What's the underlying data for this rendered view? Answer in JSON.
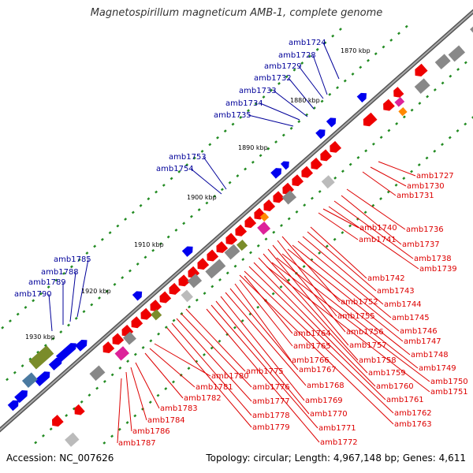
{
  "title": "Magnetospirillum magneticum AMB-1, complete genome",
  "accession": "Accession: NC_007626",
  "topology": "Topology: circular; Length: 4,967,148 bp; Genes: 4,611",
  "colors": {
    "backbone": "#888888",
    "forward_gene": "#0000ee",
    "reverse_gene": "#ee0000",
    "forward_label": "#000099",
    "reverse_label": "#dd0000",
    "cog_dot": "#228b22"
  },
  "scale_ticks": [
    "1870 kbp",
    "1880 kbp",
    "1890 kbp",
    "1900 kbp",
    "1910 kbp",
    "1920 kbp",
    "1930 kbp"
  ],
  "forward_labels": [
    "amb1724",
    "amb1728",
    "amb1729",
    "amb1732",
    "amb1733",
    "amb1734",
    "amb1735",
    "amb1753",
    "amb1754",
    "amb1785",
    "amb1788",
    "amb1789",
    "amb1790"
  ],
  "reverse_labels": [
    "amb1727",
    "amb1730",
    "amb1731",
    "amb1736",
    "amb1737",
    "amb1738",
    "amb1739",
    "amb1740",
    "amb1741",
    "amb1742",
    "amb1743",
    "amb1744",
    "amb1745",
    "amb1746",
    "amb1747",
    "amb1748",
    "amb1749",
    "amb1750",
    "amb1751",
    "amb1752",
    "amb1755",
    "amb1756",
    "amb1757",
    "amb1758",
    "amb1759",
    "amb1760",
    "amb1761",
    "amb1762",
    "amb1763",
    "amb1764",
    "amb1765",
    "amb1766",
    "amb1767",
    "amb1768",
    "amb1769",
    "amb1770",
    "amb1771",
    "amb1772",
    "amb1775",
    "amb1776",
    "amb1777",
    "amb1778",
    "amb1779",
    "amb1780",
    "amb1781",
    "amb1782",
    "amb1783",
    "amb1784",
    "amb1786",
    "amb1787"
  ]
}
